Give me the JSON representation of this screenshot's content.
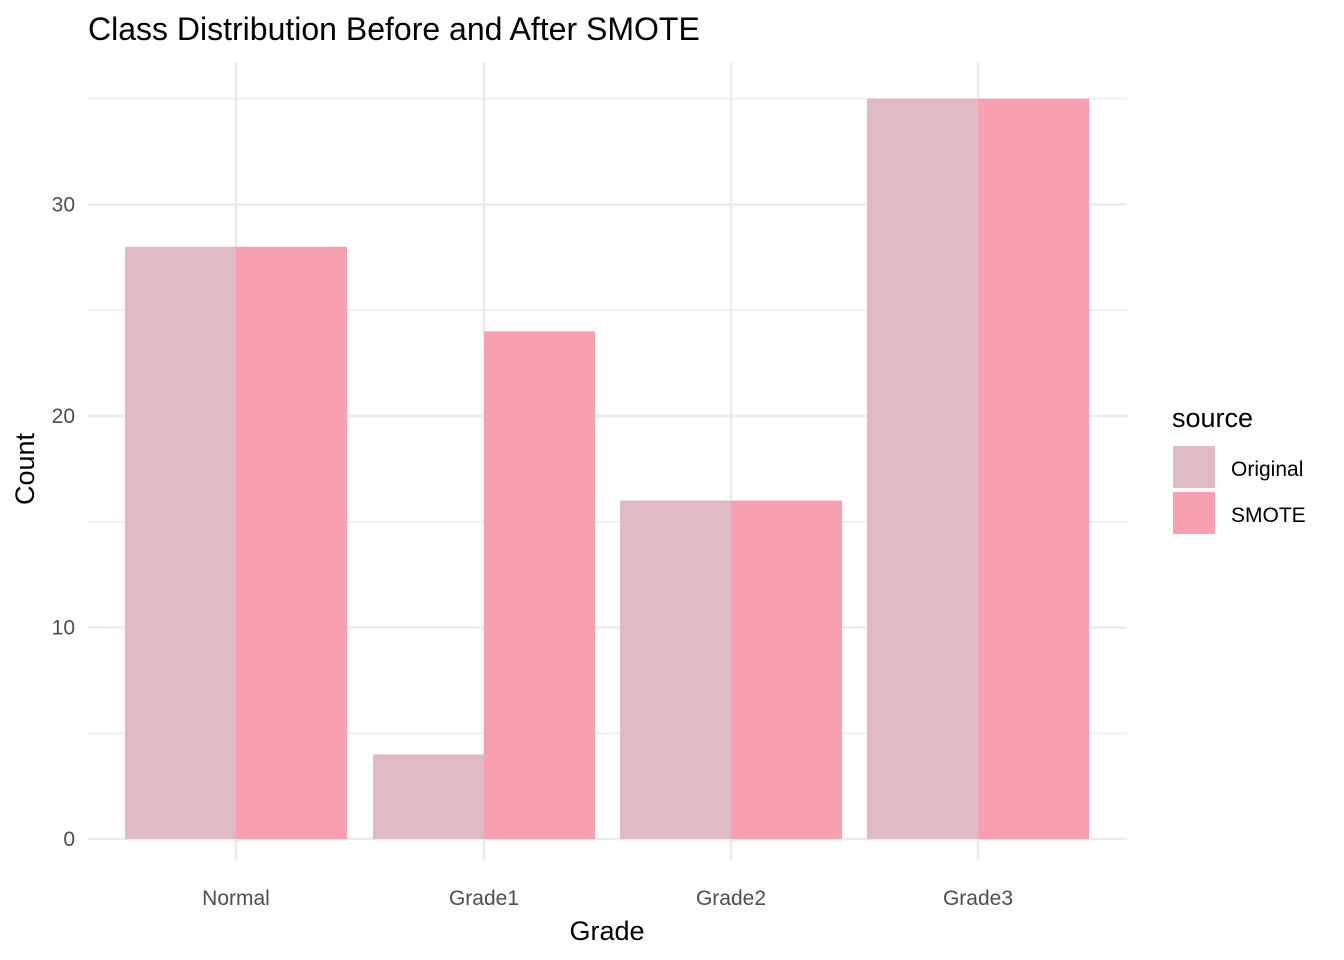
{
  "chart_data": {
    "type": "bar",
    "title": "Class Distribution Before and After SMOTE",
    "xlabel": "Grade",
    "ylabel": "Count",
    "categories": [
      "Normal",
      "Grade1",
      "Grade2",
      "Grade3"
    ],
    "series": [
      {
        "name": "Original",
        "values": [
          28,
          4,
          16,
          35
        ],
        "color": "#e0bac3"
      },
      {
        "name": "SMOTE",
        "values": [
          28,
          24,
          16,
          35
        ],
        "color": "#f7a0b0"
      }
    ],
    "ylim": [
      0,
      36.75
    ],
    "yticks": [
      "0",
      "10",
      "20",
      "30"
    ],
    "grid": true,
    "legend": {
      "title": "source",
      "position": "right",
      "items": [
        "Original",
        "SMOTE"
      ]
    }
  }
}
